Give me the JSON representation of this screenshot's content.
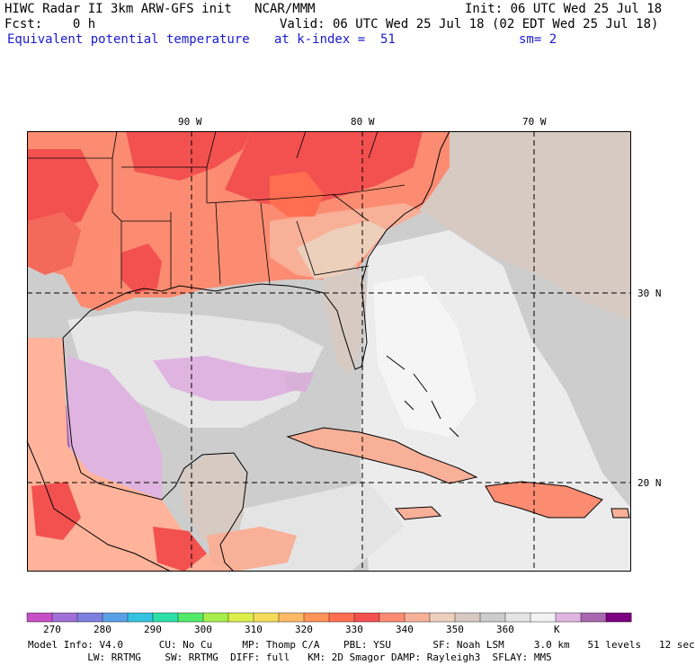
{
  "header": {
    "title_left": "HIWC Radar II 3km ARW-GFS init   NCAR/MMM",
    "init": "Init: 06 UTC Wed 25 Jul 18",
    "fcst": "Fcst:    0 h",
    "valid": "Valid: 06 UTC Wed 25 Jul 18 (02 EDT Wed 25 Jul 18)",
    "field": "Equivalent potential temperature",
    "level": "at k-index =  51",
    "smooth": "sm= 2"
  },
  "map": {
    "lon_labels": [
      "90 W",
      "80 W",
      "70 W"
    ],
    "lat_labels": [
      "30 N",
      "20 N"
    ]
  },
  "colorbar": {
    "colors": [
      "#c64fc6",
      "#a070d8",
      "#7f7fe0",
      "#5aa0e6",
      "#33c3e0",
      "#2ee0a8",
      "#52ea6a",
      "#a6ee4a",
      "#dcee4a",
      "#f4dc5a",
      "#ffba68",
      "#ff9458",
      "#ff6e50",
      "#f25150",
      "#fb8c72",
      "#f8b098",
      "#ecd0bc",
      "#d6cac2",
      "#cccccc",
      "#e4e4e4",
      "#f2f2f2",
      "#e0b4e0",
      "#a868b0",
      "#7c0080"
    ],
    "labels": [
      "270",
      "280",
      "290",
      "300",
      "310",
      "320",
      "330",
      "340",
      "350",
      "360",
      "K"
    ],
    "unit": "K"
  },
  "footer": {
    "line1": "Model Info: V4.0      CU: No Cu     MP: Thomp C/A    PBL: YSU       SF: Noah LSM     3.0 km   51 levels   12 sec",
    "line2": "          LW: RRTMG    SW: RRTMG  DIFF: full   KM: 2D Smagor DAMP: Rayleigh3  SFLAY: MM5"
  }
}
